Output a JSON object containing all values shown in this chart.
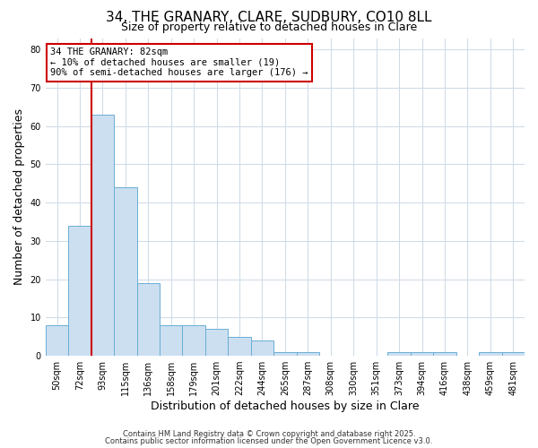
{
  "title_line1": "34, THE GRANARY, CLARE, SUDBURY, CO10 8LL",
  "title_line2": "Size of property relative to detached houses in Clare",
  "xlabel": "Distribution of detached houses by size in Clare",
  "ylabel": "Number of detached properties",
  "categories": [
    "50sqm",
    "72sqm",
    "93sqm",
    "115sqm",
    "136sqm",
    "158sqm",
    "179sqm",
    "201sqm",
    "222sqm",
    "244sqm",
    "265sqm",
    "287sqm",
    "308sqm",
    "330sqm",
    "351sqm",
    "373sqm",
    "394sqm",
    "416sqm",
    "438sqm",
    "459sqm",
    "481sqm"
  ],
  "values": [
    8,
    34,
    63,
    44,
    19,
    8,
    8,
    7,
    5,
    4,
    1,
    1,
    0,
    0,
    0,
    1,
    1,
    1,
    0,
    1,
    1
  ],
  "bar_color": "#ccdff0",
  "bar_edge_color": "#6aadd5",
  "ylim": [
    0,
    83
  ],
  "yticks": [
    0,
    10,
    20,
    30,
    40,
    50,
    60,
    70,
    80
  ],
  "red_line_x": 1.5,
  "annotation_line1": "34 THE GRANARY: 82sqm",
  "annotation_line2": "← 10% of detached houses are smaller (19)",
  "annotation_line3": "90% of semi-detached houses are larger (176) →",
  "annotation_box_facecolor": "#ffffff",
  "annotation_box_edgecolor": "#cc0000",
  "red_line_color": "#cc0000",
  "footer_line1": "Contains HM Land Registry data © Crown copyright and database right 2025.",
  "footer_line2": "Contains public sector information licensed under the Open Government Licence v3.0.",
  "background_color": "#ffffff",
  "grid_color": "#d0dce8",
  "title_fontsize": 11,
  "subtitle_fontsize": 9,
  "tick_fontsize": 7,
  "axis_label_fontsize": 9
}
